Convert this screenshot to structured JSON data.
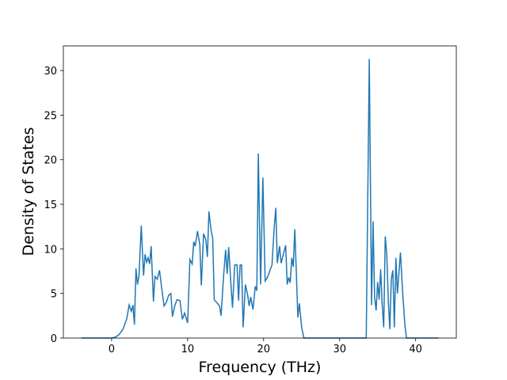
{
  "chart_data": {
    "type": "line",
    "x_label": "Frequency (THz)",
    "y_label": "Density of States",
    "x": [
      -4,
      -2,
      0,
      0.5,
      1,
      1.5,
      2,
      2.3,
      2.6,
      2.8,
      3.0,
      3.2,
      3.4,
      3.6,
      3.9,
      4.2,
      4.4,
      4.6,
      4.8,
      5.0,
      5.2,
      5.5,
      5.7,
      6.0,
      6.3,
      6.6,
      6.9,
      7.2,
      7.5,
      7.8,
      8.0,
      8.3,
      8.6,
      9.0,
      9.3,
      9.6,
      10.0,
      10.3,
      10.6,
      10.8,
      11.0,
      11.3,
      11.6,
      11.8,
      12.1,
      12.4,
      12.6,
      12.8,
      13.1,
      13.3,
      13.5,
      13.8,
      14.2,
      14.4,
      14.7,
      15.0,
      15.2,
      15.4,
      15.7,
      15.9,
      16.2,
      16.5,
      16.7,
      16.9,
      17.1,
      17.3,
      17.6,
      17.9,
      18.1,
      18.3,
      18.6,
      18.9,
      19.1,
      19.3,
      19.6,
      19.9,
      20.2,
      20.5,
      20.8,
      21.1,
      21.4,
      21.6,
      21.8,
      22.1,
      22.3,
      22.6,
      22.9,
      23.1,
      23.3,
      23.5,
      23.7,
      23.9,
      24.1,
      24.3,
      24.5,
      24.7,
      25.0,
      25.3,
      26,
      30,
      33.5,
      33.9,
      34.2,
      34.4,
      34.6,
      34.8,
      35.0,
      35.2,
      35.4,
      35.6,
      35.8,
      36.0,
      36.2,
      36.4,
      36.6,
      36.8,
      37.0,
      37.2,
      37.4,
      37.6,
      37.8,
      38.0,
      38.3,
      38.6,
      38.8,
      39.5,
      43
    ],
    "series": [
      {
        "color": "#1f77b4",
        "values": [
          0,
          0,
          0,
          0.1,
          0.4,
          1.0,
          2.2,
          3.7,
          3.0,
          3.7,
          1.5,
          7.8,
          6.0,
          7.0,
          12.6,
          7.0,
          9.4,
          8.5,
          9.0,
          8.3,
          10.3,
          4.1,
          6.9,
          6.6,
          7.6,
          5.5,
          3.6,
          4.0,
          4.8,
          5.0,
          2.4,
          3.6,
          4.3,
          4.2,
          2.1,
          2.8,
          1.7,
          8.8,
          8.3,
          10.8,
          10.3,
          12.0,
          10.5,
          5.9,
          11.7,
          11.0,
          9.1,
          14.2,
          12.0,
          11.2,
          4.3,
          4.0,
          3.6,
          2.5,
          6.6,
          9.9,
          7.2,
          10.2,
          6.0,
          3.4,
          8.2,
          8.2,
          4.2,
          8.2,
          8.2,
          1.2,
          6.0,
          4.8,
          3.6,
          4.6,
          3.2,
          5.8,
          5.3,
          20.7,
          6.0,
          18.0,
          6.4,
          6.8,
          7.5,
          8.2,
          12.5,
          14.6,
          8.4,
          10.3,
          8.4,
          9.4,
          10.4,
          6.0,
          6.8,
          6.2,
          9.0,
          8.0,
          12.2,
          7.4,
          2.3,
          3.9,
          1.2,
          0,
          0,
          0,
          0,
          31.3,
          3.7,
          13.1,
          4.6,
          3.1,
          6.3,
          4.3,
          7.7,
          3.7,
          1.2,
          11.4,
          9.4,
          4.3,
          1.0,
          6.6,
          7.6,
          1.2,
          9.0,
          5.0,
          7.3,
          9.6,
          5.0,
          1.3,
          0,
          0,
          0
        ]
      }
    ],
    "xlim": [
      -6.35,
      45.35
    ],
    "ylim": [
      0,
      32.76
    ],
    "xticks": [
      0,
      10,
      20,
      30,
      40
    ],
    "yticks": [
      0,
      5,
      10,
      15,
      20,
      25,
      30
    ]
  }
}
